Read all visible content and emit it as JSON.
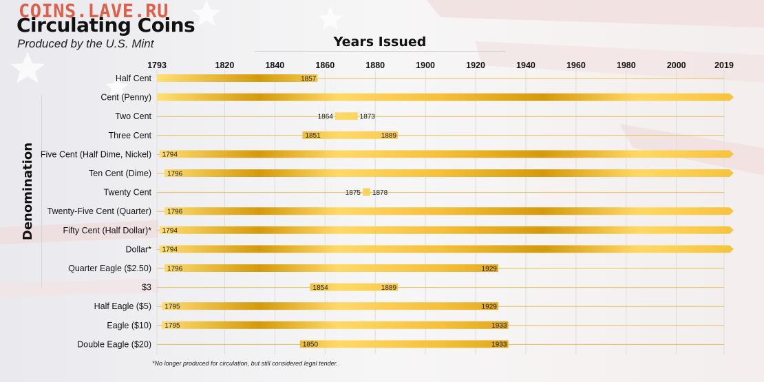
{
  "watermark": "COINS.LAVE.RU",
  "title": "Circulating Coins",
  "subtitle": "Produced by the U.S. Mint",
  "footnote": "*No longer produced for circulation, but still considered legal tender.",
  "chart_data": {
    "type": "bar",
    "orientation": "horizontal",
    "chart_style": "timeline range bars",
    "xlabel": "Years Issued",
    "ylabel": "Denomination",
    "xlim": [
      1793,
      2019
    ],
    "xticks": [
      1793,
      1820,
      1840,
      1860,
      1880,
      1900,
      1920,
      1940,
      1960,
      1980,
      2000,
      2019
    ],
    "grid": true,
    "legend": "none",
    "colors": {
      "light": "#ffdc6e",
      "dark": "#d9a10c",
      "rule": "#e6be57",
      "grid": "#dddddd"
    },
    "rows": [
      {
        "label": "Half Cent",
        "start": 1793,
        "end": 1857,
        "start_label": "",
        "end_label": "1857",
        "ongoing": false
      },
      {
        "label": "Cent (Penny)",
        "start": 1793,
        "end": 2019,
        "start_label": "",
        "end_label": "",
        "ongoing": true
      },
      {
        "label": "Two Cent",
        "start": 1864,
        "end": 1873,
        "start_label": "1864",
        "end_label": "1873",
        "ongoing": false
      },
      {
        "label": "Three Cent",
        "start": 1851,
        "end": 1889,
        "start_label": "1851",
        "end_label": "1889",
        "ongoing": false
      },
      {
        "label": "Five Cent (Half Dime, Nickel)",
        "start": 1794,
        "end": 2019,
        "start_label": "1794",
        "end_label": "",
        "ongoing": true
      },
      {
        "label": "Ten Cent (Dime)",
        "start": 1796,
        "end": 2019,
        "start_label": "1796",
        "end_label": "",
        "ongoing": true
      },
      {
        "label": "Twenty Cent",
        "start": 1875,
        "end": 1878,
        "start_label": "1875",
        "end_label": "1878",
        "ongoing": false
      },
      {
        "label": "Twenty-Five Cent (Quarter)",
        "start": 1796,
        "end": 2019,
        "start_label": "1796",
        "end_label": "",
        "ongoing": true
      },
      {
        "label": "Fifty Cent (Half Dollar)*",
        "start": 1794,
        "end": 2019,
        "start_label": "1794",
        "end_label": "",
        "ongoing": true
      },
      {
        "label": "Dollar*",
        "start": 1794,
        "end": 2019,
        "start_label": "1794",
        "end_label": "",
        "ongoing": true
      },
      {
        "label": "Quarter Eagle ($2.50)",
        "start": 1796,
        "end": 1929,
        "start_label": "1796",
        "end_label": "1929",
        "ongoing": false
      },
      {
        "label": "$3",
        "start": 1854,
        "end": 1889,
        "start_label": "1854",
        "end_label": "1889",
        "ongoing": false
      },
      {
        "label": "Half Eagle ($5)",
        "start": 1795,
        "end": 1929,
        "start_label": "1795",
        "end_label": "1929",
        "ongoing": false
      },
      {
        "label": "Eagle ($10)",
        "start": 1795,
        "end": 1933,
        "start_label": "1795",
        "end_label": "1933",
        "ongoing": false
      },
      {
        "label": "Double Eagle ($20)",
        "start": 1850,
        "end": 1933,
        "start_label": "1850",
        "end_label": "1933",
        "ongoing": false
      }
    ]
  }
}
